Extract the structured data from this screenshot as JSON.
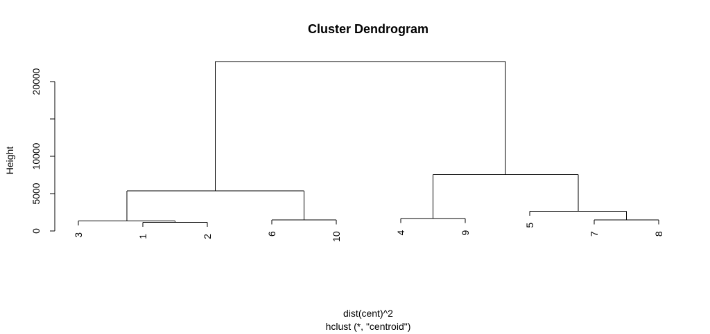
{
  "chart_data": {
    "type": "dendrogram",
    "title": "Cluster Dendrogram",
    "ylabel": "Height",
    "xlabel": "dist(cent)^2",
    "sublabel": "hclust (*, \"centroid\")",
    "ylim": [
      0,
      22500
    ],
    "y_ticks": [
      0,
      5000,
      10000,
      15000,
      20000
    ],
    "y_tick_labels": [
      "0",
      "5000",
      "10000",
      "",
      "20000"
    ],
    "leaf_order": [
      "3",
      "1",
      "2",
      "6",
      "10",
      "4",
      "9",
      "5",
      "7",
      "8"
    ],
    "merges": [
      {
        "id": "m12",
        "left": "1",
        "right": "2",
        "height": 1150
      },
      {
        "id": "m3_12",
        "left": "3",
        "right": "m12",
        "height": 1350
      },
      {
        "id": "m6_10",
        "left": "6",
        "right": "10",
        "height": 1500
      },
      {
        "id": "m4_9",
        "left": "4",
        "right": "9",
        "height": 1650
      },
      {
        "id": "m7_8",
        "left": "7",
        "right": "8",
        "height": 1500
      },
      {
        "id": "m5_78",
        "left": "5",
        "right": "m7_8",
        "height": 2650
      },
      {
        "id": "mL",
        "left": "m3_12",
        "right": "m6_10",
        "height": 5350
      },
      {
        "id": "mR",
        "left": "m4_9",
        "right": "m5_78",
        "height": 7550
      },
      {
        "id": "root",
        "left": "mL",
        "right": "mR",
        "height": 22700
      }
    ],
    "leaf_heights": {
      "3": 1350,
      "1": 1150,
      "2": 1150,
      "6": 1500,
      "10": 1500,
      "4": 1650,
      "9": 1650,
      "5": 2650,
      "7": 1500,
      "8": 1500
    },
    "hang_offset": 600
  }
}
